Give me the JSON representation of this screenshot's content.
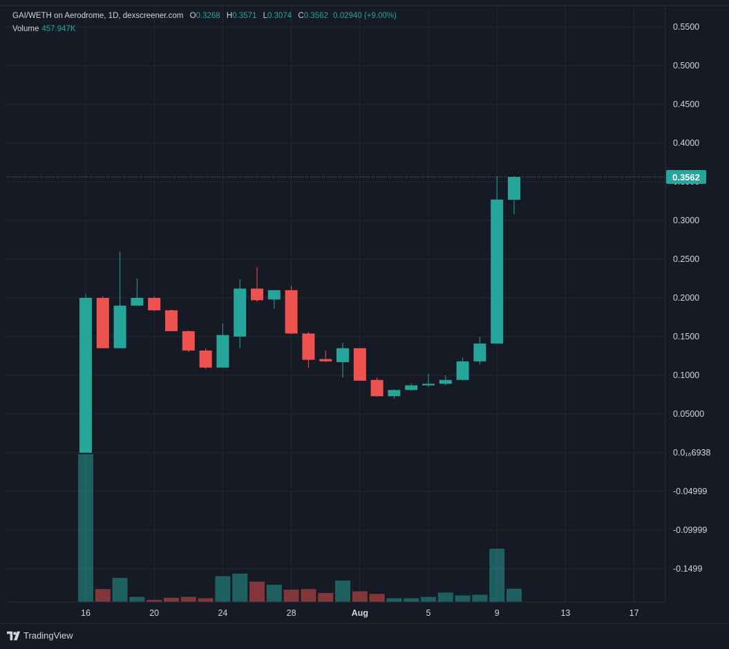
{
  "header": {
    "pair": "GAI/WETH on Aerodrome, 1D, dexscreener.com",
    "o_label": "O",
    "o_value": "0.3268",
    "h_label": "H",
    "h_value": "0.3571",
    "l_label": "L",
    "l_value": "0.3074",
    "c_label": "C",
    "c_value": "0.3562",
    "change": "0.02940 (+9.00%)",
    "volume_label": "Volume",
    "volume_value": "457.947K"
  },
  "footer": {
    "brand": "TradingView"
  },
  "colors": {
    "up": "#26a69a",
    "down": "#ef5350",
    "background": "#161a25",
    "grid": "#232837"
  },
  "chart_data": {
    "type": "candlestick",
    "y_ticks": [
      "0.5500",
      "0.5000",
      "0.4500",
      "0.4000",
      "0.3500",
      "0.3000",
      "0.2500",
      "0.2000",
      "0.1500",
      "0.1000",
      "0.05000",
      "0.0₁₆6938",
      "-0.04999",
      "-0.09999",
      "-0.1499"
    ],
    "y_tick_values": [
      0.55,
      0.5,
      0.45,
      0.4,
      0.35,
      0.3,
      0.25,
      0.2,
      0.15,
      0.1,
      0.05,
      0,
      -0.05,
      -0.1,
      -0.15
    ],
    "ylim": [
      -0.195,
      0.58
    ],
    "x_ticks": [
      {
        "label": "16",
        "day": 16
      },
      {
        "label": "20",
        "day": 20
      },
      {
        "label": "24",
        "day": 24
      },
      {
        "label": "28",
        "day": 28
      },
      {
        "label": "Aug",
        "day": 32
      },
      {
        "label": "5",
        "day": 36
      },
      {
        "label": "9",
        "day": 40
      },
      {
        "label": "13",
        "day": 44
      },
      {
        "label": "17",
        "day": 48
      }
    ],
    "last_price": "0.3562",
    "last_price_value": 0.3562,
    "candles": [
      {
        "day": 16,
        "o": 0.0,
        "h": 0.205,
        "l": 0.0,
        "c": 0.2,
        "v": 0.86
      },
      {
        "day": 17,
        "o": 0.2,
        "h": 0.202,
        "l": 0.135,
        "c": 0.135,
        "v": 0.075
      },
      {
        "day": 18,
        "o": 0.135,
        "h": 0.26,
        "l": 0.135,
        "c": 0.19,
        "v": 0.14
      },
      {
        "day": 19,
        "o": 0.19,
        "h": 0.225,
        "l": 0.19,
        "c": 0.2,
        "v": 0.03
      },
      {
        "day": 20,
        "o": 0.2,
        "h": 0.202,
        "l": 0.183,
        "c": 0.184,
        "v": 0.012
      },
      {
        "day": 21,
        "o": 0.184,
        "h": 0.185,
        "l": 0.157,
        "c": 0.157,
        "v": 0.025
      },
      {
        "day": 22,
        "o": 0.157,
        "h": 0.158,
        "l": 0.13,
        "c": 0.132,
        "v": 0.03
      },
      {
        "day": 23,
        "o": 0.132,
        "h": 0.135,
        "l": 0.108,
        "c": 0.11,
        "v": 0.022
      },
      {
        "day": 24,
        "o": 0.11,
        "h": 0.167,
        "l": 0.11,
        "c": 0.152,
        "v": 0.15
      },
      {
        "day": 25,
        "o": 0.15,
        "h": 0.224,
        "l": 0.135,
        "c": 0.212,
        "v": 0.165
      },
      {
        "day": 26,
        "o": 0.212,
        "h": 0.24,
        "l": 0.195,
        "c": 0.197,
        "v": 0.118
      },
      {
        "day": 27,
        "o": 0.198,
        "h": 0.21,
        "l": 0.186,
        "c": 0.21,
        "v": 0.1
      },
      {
        "day": 28,
        "o": 0.21,
        "h": 0.216,
        "l": 0.153,
        "c": 0.154,
        "v": 0.072
      },
      {
        "day": 29,
        "o": 0.154,
        "h": 0.156,
        "l": 0.11,
        "c": 0.12,
        "v": 0.075
      },
      {
        "day": 30,
        "o": 0.121,
        "h": 0.132,
        "l": 0.117,
        "c": 0.118,
        "v": 0.052
      },
      {
        "day": 31,
        "o": 0.117,
        "h": 0.142,
        "l": 0.097,
        "c": 0.135,
        "v": 0.125
      },
      {
        "day": 32,
        "o": 0.135,
        "h": 0.135,
        "l": 0.093,
        "c": 0.093,
        "v": 0.062
      },
      {
        "day": 33,
        "o": 0.094,
        "h": 0.097,
        "l": 0.072,
        "c": 0.073,
        "v": 0.047
      },
      {
        "day": 34,
        "o": 0.073,
        "h": 0.082,
        "l": 0.07,
        "c": 0.081,
        "v": 0.022
      },
      {
        "day": 35,
        "o": 0.081,
        "h": 0.09,
        "l": 0.08,
        "c": 0.087,
        "v": 0.022
      },
      {
        "day": 36,
        "o": 0.087,
        "h": 0.102,
        "l": 0.085,
        "c": 0.089,
        "v": 0.03
      },
      {
        "day": 37,
        "o": 0.089,
        "h": 0.1,
        "l": 0.087,
        "c": 0.094,
        "v": 0.055
      },
      {
        "day": 38,
        "o": 0.094,
        "h": 0.123,
        "l": 0.093,
        "c": 0.118,
        "v": 0.038
      },
      {
        "day": 39,
        "o": 0.118,
        "h": 0.15,
        "l": 0.114,
        "c": 0.141,
        "v": 0.042
      },
      {
        "day": 40,
        "o": 0.141,
        "h": 0.357,
        "l": 0.141,
        "c": 0.327,
        "v": 0.31
      },
      {
        "day": 41,
        "o": 0.3268,
        "h": 0.3571,
        "l": 0.3074,
        "c": 0.3562,
        "v": 0.077
      }
    ]
  }
}
